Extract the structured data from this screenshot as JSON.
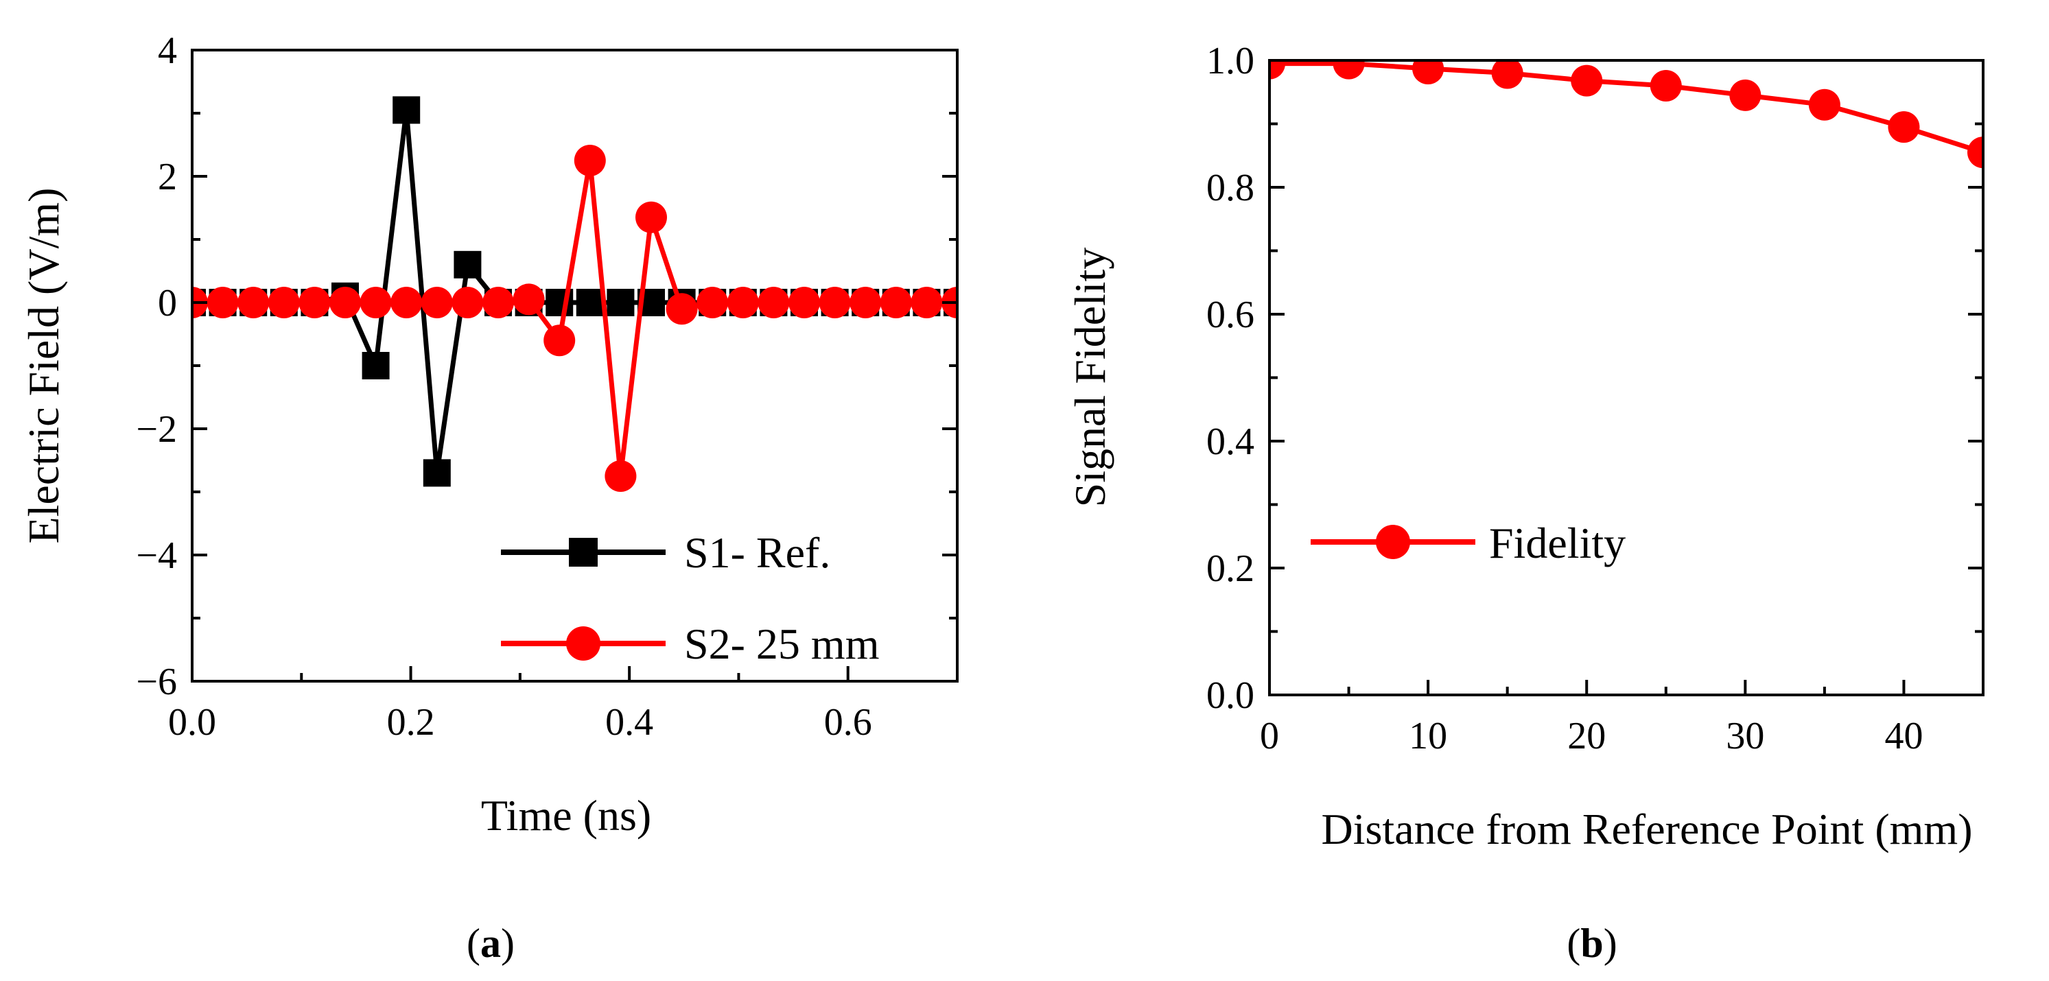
{
  "chart_data": [
    {
      "panel": "a",
      "type": "line",
      "xlabel": "Time (ns)",
      "ylabel": "Electric Field (V/m)",
      "xlim": [
        0.0,
        0.7
      ],
      "ylim": [
        -6,
        4
      ],
      "xticks": [
        "0.0",
        "0.2",
        "0.4",
        "0.6"
      ],
      "xtick_values": [
        0.0,
        0.2,
        0.4,
        0.6
      ],
      "yticks": [
        "4",
        "2",
        "0",
        "−2",
        "−4",
        "−6"
      ],
      "ytick_values": [
        4,
        2,
        0,
        -2,
        -4,
        -6
      ],
      "legend_position": "bottom-right",
      "series": [
        {
          "name": "S1- Ref.",
          "color": "#000000",
          "marker": "square",
          "x": [
            0.0,
            0.028,
            0.056,
            0.084,
            0.112,
            0.14,
            0.168,
            0.196,
            0.224,
            0.252,
            0.28,
            0.308,
            0.336,
            0.364,
            0.392,
            0.42,
            0.448,
            0.476,
            0.504,
            0.532,
            0.56,
            0.588,
            0.616,
            0.644,
            0.672,
            0.7
          ],
          "y": [
            0.0,
            0.0,
            0.0,
            0.0,
            0.0,
            0.1,
            -1.0,
            3.05,
            -2.7,
            0.6,
            0.0,
            0.0,
            0.0,
            0.0,
            0.0,
            0.0,
            0.0,
            0.0,
            0.0,
            0.0,
            0.0,
            0.0,
            0.0,
            0.0,
            0.0,
            0.0
          ]
        },
        {
          "name": "S2- 25 mm",
          "color": "#ff0000",
          "marker": "circle",
          "x": [
            0.0,
            0.028,
            0.056,
            0.084,
            0.112,
            0.14,
            0.168,
            0.196,
            0.224,
            0.252,
            0.28,
            0.308,
            0.336,
            0.364,
            0.392,
            0.42,
            0.448,
            0.476,
            0.504,
            0.532,
            0.56,
            0.588,
            0.616,
            0.644,
            0.672,
            0.7
          ],
          "y": [
            0.0,
            0.0,
            0.0,
            0.0,
            0.0,
            0.0,
            0.0,
            0.0,
            0.0,
            0.0,
            0.0,
            0.05,
            -0.6,
            2.25,
            -2.75,
            1.35,
            -0.1,
            0.0,
            0.0,
            0.0,
            0.0,
            0.0,
            0.0,
            0.0,
            0.0,
            0.0
          ]
        }
      ]
    },
    {
      "panel": "b",
      "type": "line",
      "xlabel": "Distance from Reference Point (mm)",
      "ylabel": "Signal Fidelity",
      "xlim": [
        0,
        45
      ],
      "ylim": [
        0.0,
        1.0
      ],
      "xticks": [
        "0",
        "10",
        "20",
        "30",
        "40"
      ],
      "xtick_values": [
        0,
        10,
        20,
        30,
        40
      ],
      "yticks": [
        "1.0",
        "0.8",
        "0.6",
        "0.4",
        "0.2",
        "0.0"
      ],
      "ytick_values": [
        1.0,
        0.8,
        0.6,
        0.4,
        0.2,
        0.0
      ],
      "legend_position": "center-left",
      "series": [
        {
          "name": "Fidelity",
          "color": "#ff0000",
          "marker": "circle",
          "x": [
            0,
            5,
            10,
            15,
            20,
            25,
            30,
            35,
            40,
            45
          ],
          "y": [
            0.995,
            0.995,
            0.987,
            0.98,
            0.968,
            0.96,
            0.945,
            0.93,
            0.895,
            0.855
          ]
        }
      ]
    }
  ],
  "captions": {
    "a_open": "(",
    "a_letter": "a",
    "a_close": ")",
    "b_open": "(",
    "b_letter": "b",
    "b_close": ")"
  }
}
